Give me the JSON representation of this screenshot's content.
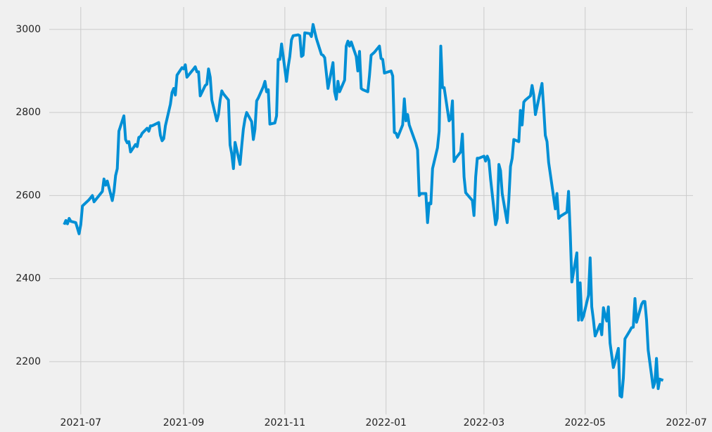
{
  "chart_data": {
    "type": "line",
    "color": "#008fd5",
    "grid": true,
    "x": [
      18799,
      18800,
      18801,
      18802,
      18803,
      18806,
      18808,
      18809,
      18810,
      18814,
      18816,
      18817,
      18822,
      18823,
      18824,
      18825,
      18828,
      18829,
      18830,
      18831,
      18832,
      18835,
      18836,
      18837,
      18838,
      18839,
      18842,
      18843,
      18844,
      18845,
      18846,
      18849,
      18850,
      18851,
      18852,
      18853,
      18856,
      18857,
      18858,
      18859,
      18860,
      18863,
      18864,
      18865,
      18866,
      18867,
      18870,
      18871,
      18872,
      18873,
      18877,
      18878,
      18879,
      18880,
      18881,
      18884,
      18885,
      18886,
      18887,
      18888,
      18891,
      18892,
      18893,
      18894,
      18895,
      18898,
      18899,
      18900,
      18901,
      18902,
      18905,
      18906,
      18907,
      18908,
      18909,
      18912,
      18913,
      18914,
      18915,
      18916,
      18919,
      18920,
      18921,
      18922,
      18923,
      18926,
      18927,
      18928,
      18929,
      18930,
      18933,
      18934,
      18935,
      18936,
      18937,
      18940,
      18941,
      18942,
      18943,
      18944,
      18947,
      18948,
      18949,
      18950,
      18951,
      18954,
      18955,
      18956,
      18958,
      18961,
      18962,
      18963,
      18964,
      18965,
      18968,
      18969,
      18970,
      18971,
      18972,
      18975,
      18976,
      18977,
      18978,
      18979,
      18982,
      18983,
      18984,
      18986,
      18989,
      18990,
      18991,
      18992,
      18996,
      18997,
      18998,
      18999,
      19000,
      19003,
      19004,
      19005,
      19006,
      19007,
      19011,
      19012,
      19013,
      19014,
      19017,
      19018,
      19019,
      19020,
      19021,
      19024,
      19025,
      19026,
      19027,
      19028,
      19031,
      19032,
      19033,
      19034,
      19035,
      19038,
      19039,
      19040,
      19041,
      19045,
      19046,
      19047,
      19048,
      19049,
      19052,
      19053,
      19054,
      19055,
      19056,
      19059,
      19060,
      19061,
      19062,
      19063,
      19066,
      19067,
      19068,
      19069,
      19070,
      19073,
      19074,
      19075,
      19076,
      19077,
      19080,
      19081,
      19082,
      19083,
      19087,
      19088,
      19089,
      19090,
      19091,
      19095,
      19096,
      19097,
      19098,
      19102,
      19103,
      19104,
      19105,
      19108,
      19109,
      19110,
      19111,
      19112,
      19115,
      19116,
      19117,
      19118,
      19119,
      19122,
      19123,
      19124,
      19125,
      19126,
      19127,
      19128,
      19130,
      19131,
      19133,
      19134,
      19135,
      19136,
      19137,
      19140,
      19141,
      19142,
      19143,
      19144,
      19147,
      19148,
      19149,
      19150,
      19151,
      19154,
      19155,
      19156,
      19157,
      19158,
      19160
    ],
    "values": [
      2530,
      2540,
      2532,
      2545,
      2538,
      2535,
      2508,
      2530,
      2575,
      2590,
      2600,
      2585,
      2610,
      2640,
      2625,
      2635,
      2588,
      2610,
      2648,
      2665,
      2755,
      2792,
      2735,
      2727,
      2730,
      2705,
      2723,
      2718,
      2740,
      2742,
      2750,
      2762,
      2755,
      2768,
      2768,
      2770,
      2776,
      2745,
      2732,
      2737,
      2768,
      2820,
      2848,
      2858,
      2842,
      2890,
      2908,
      2905,
      2915,
      2885,
      2905,
      2910,
      2898,
      2898,
      2840,
      2865,
      2868,
      2905,
      2885,
      2830,
      2780,
      2795,
      2830,
      2852,
      2845,
      2830,
      2722,
      2700,
      2665,
      2728,
      2675,
      2720,
      2760,
      2785,
      2800,
      2778,
      2735,
      2760,
      2828,
      2835,
      2862,
      2875,
      2850,
      2855,
      2772,
      2775,
      2792,
      2928,
      2928,
      2965,
      2875,
      2910,
      2935,
      2975,
      2985,
      2987,
      2985,
      2935,
      2938,
      2992,
      2990,
      2983,
      3012,
      2995,
      2978,
      2940,
      2938,
      2932,
      2858,
      2920,
      2850,
      2832,
      2875,
      2850,
      2878,
      2960,
      2972,
      2960,
      2970,
      2935,
      2900,
      2947,
      2858,
      2855,
      2850,
      2888,
      2938,
      2945,
      2960,
      2930,
      2928,
      2895,
      2900,
      2888,
      2752,
      2750,
      2740,
      2770,
      2833,
      2780,
      2795,
      2770,
      2725,
      2710,
      2600,
      2605,
      2605,
      2535,
      2582,
      2580,
      2665,
      2715,
      2755,
      2960,
      2860,
      2860,
      2780,
      2785,
      2828,
      2682,
      2690,
      2705,
      2748,
      2645,
      2607,
      2588,
      2552,
      2645,
      2690,
      2690,
      2695,
      2683,
      2695,
      2685,
      2640,
      2530,
      2545,
      2675,
      2660,
      2605,
      2535,
      2590,
      2670,
      2690,
      2735,
      2730,
      2805,
      2770,
      2825,
      2830,
      2840,
      2865,
      2842,
      2795,
      2870,
      2810,
      2745,
      2730,
      2680,
      2568,
      2605,
      2545,
      2550,
      2560,
      2610,
      2510,
      2392,
      2462,
      2300,
      2390,
      2300,
      2310,
      2360,
      2450,
      2332,
      2300,
      2262,
      2290,
      2265,
      2330,
      2312,
      2298,
      2332,
      2245,
      2186,
      2200,
      2232,
      2118,
      2115,
      2160,
      2255,
      2275,
      2282,
      2283,
      2352,
      2295,
      2338,
      2345,
      2345,
      2300,
      2228,
      2138,
      2150,
      2208,
      2135,
      2158,
      2155
    ],
    "xlim": [
      18790,
      19178
    ],
    "xticks": [
      {
        "value": 18809,
        "label": "2021-07"
      },
      {
        "value": 18871,
        "label": "2021-09"
      },
      {
        "value": 18932,
        "label": "2021-11"
      },
      {
        "value": 18993,
        "label": "2022-01"
      },
      {
        "value": 19052,
        "label": "2022-03"
      },
      {
        "value": 19113,
        "label": "2022-05"
      },
      {
        "value": 19174,
        "label": "2022-07"
      }
    ],
    "ylim": [
      2073,
      3054
    ],
    "yticks": [
      2200,
      2400,
      2600,
      2800,
      3000
    ]
  }
}
